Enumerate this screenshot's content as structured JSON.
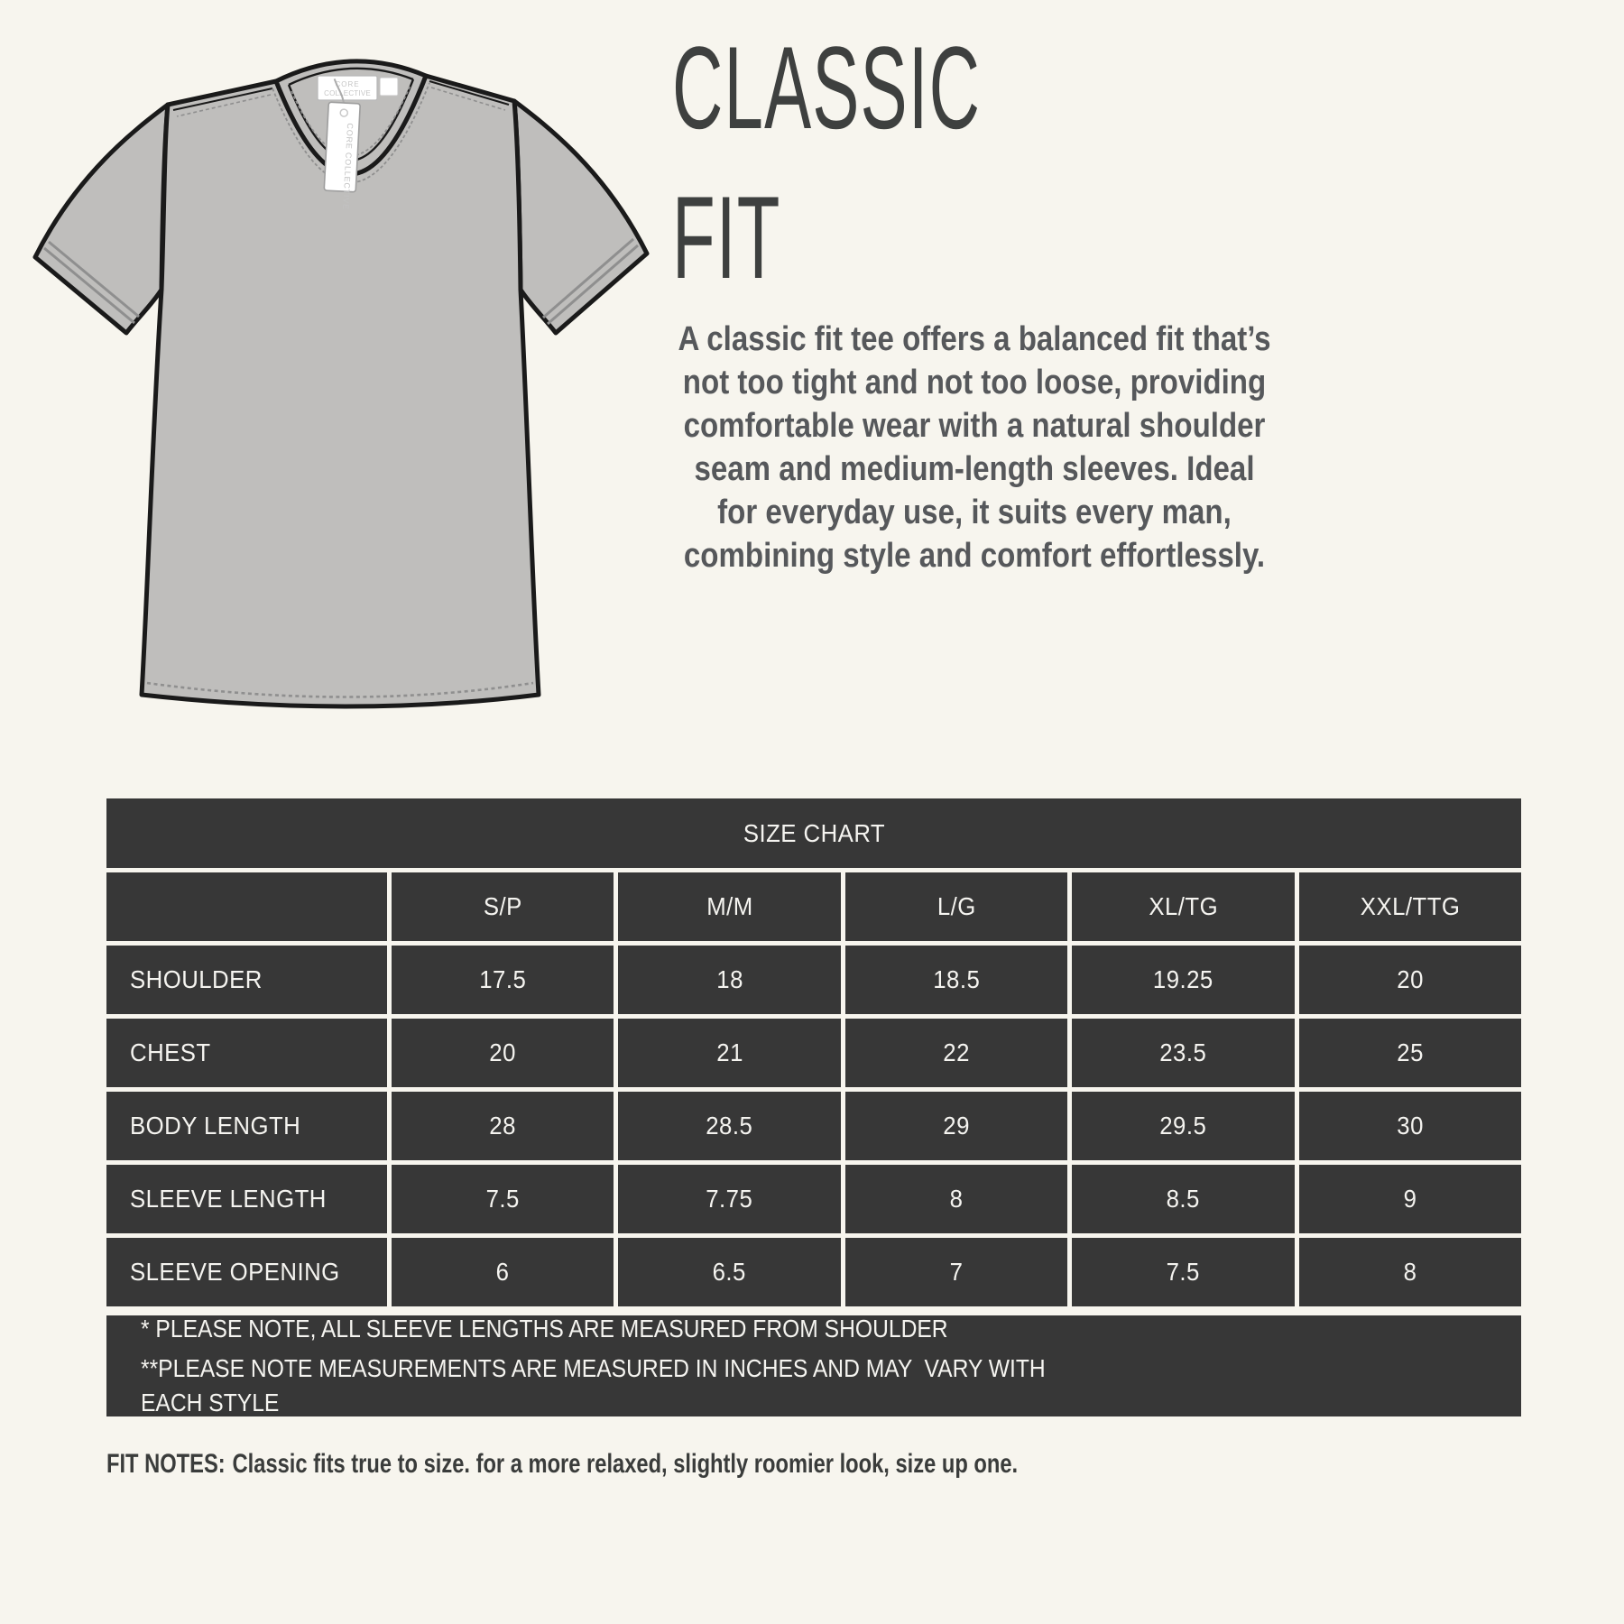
{
  "header": {
    "title_line1": "CLASSIC",
    "title_line2": "FIT"
  },
  "description": {
    "lines": [
      "A classic fit tee offers a balanced fit that’s",
      "not too tight and not too loose, providing",
      "comfortable wear with a natural shoulder",
      "seam and medium-length sleeves. Ideal",
      "for everyday use, it suits every man,",
      "combining style and comfort effortlessly."
    ]
  },
  "illustration": {
    "description": "flat technical sketch of a classic fit t-shirt",
    "hang_tag_text": "CORE COLLECTIVE",
    "neck_label_line1": "CORE",
    "neck_label_line2": "COLLECTIVE"
  },
  "size_chart": {
    "title": "SIZE CHART",
    "columns": [
      "S/P",
      "M/M",
      "L/G",
      "XL/TG",
      "XXL/TTG"
    ],
    "rows": [
      {
        "label": "SHOULDER",
        "values": [
          "17.5",
          "18",
          "18.5",
          "19.25",
          "20"
        ]
      },
      {
        "label": "CHEST",
        "values": [
          "20",
          "21",
          "22",
          "23.5",
          "25"
        ]
      },
      {
        "label": "BODY LENGTH",
        "values": [
          "28",
          "28.5",
          "29",
          "29.5",
          "30"
        ]
      },
      {
        "label": "SLEEVE LENGTH",
        "values": [
          "7.5",
          "7.75",
          "8",
          "8.5",
          "9"
        ]
      },
      {
        "label": "SLEEVE OPENING",
        "values": [
          "6",
          "6.5",
          "7",
          "7.5",
          "8"
        ]
      }
    ],
    "notes": [
      "* PLEASE NOTE, ALL SLEEVE LENGTHS ARE MEASURED FROM SHOULDER",
      "**PLEASE NOTE MEASUREMENTS ARE MEASURED IN INCHES AND MAY  VARY WITH EACH STYLE"
    ]
  },
  "fit_notes": {
    "label": "FIT NOTES:",
    "text": "Classic fits true to size. for a more relaxed, slightly roomier look, size up one."
  },
  "colors": {
    "background": "#F7F5EE",
    "panel_dark": "#373737",
    "panel_text": "#F5F4F0",
    "title_text": "#3E403F",
    "body_text": "#56585B",
    "shirt_fill": "#BFBEBC",
    "shirt_outline": "#1A1A1A",
    "stitch_gray": "#8F8F8F"
  }
}
